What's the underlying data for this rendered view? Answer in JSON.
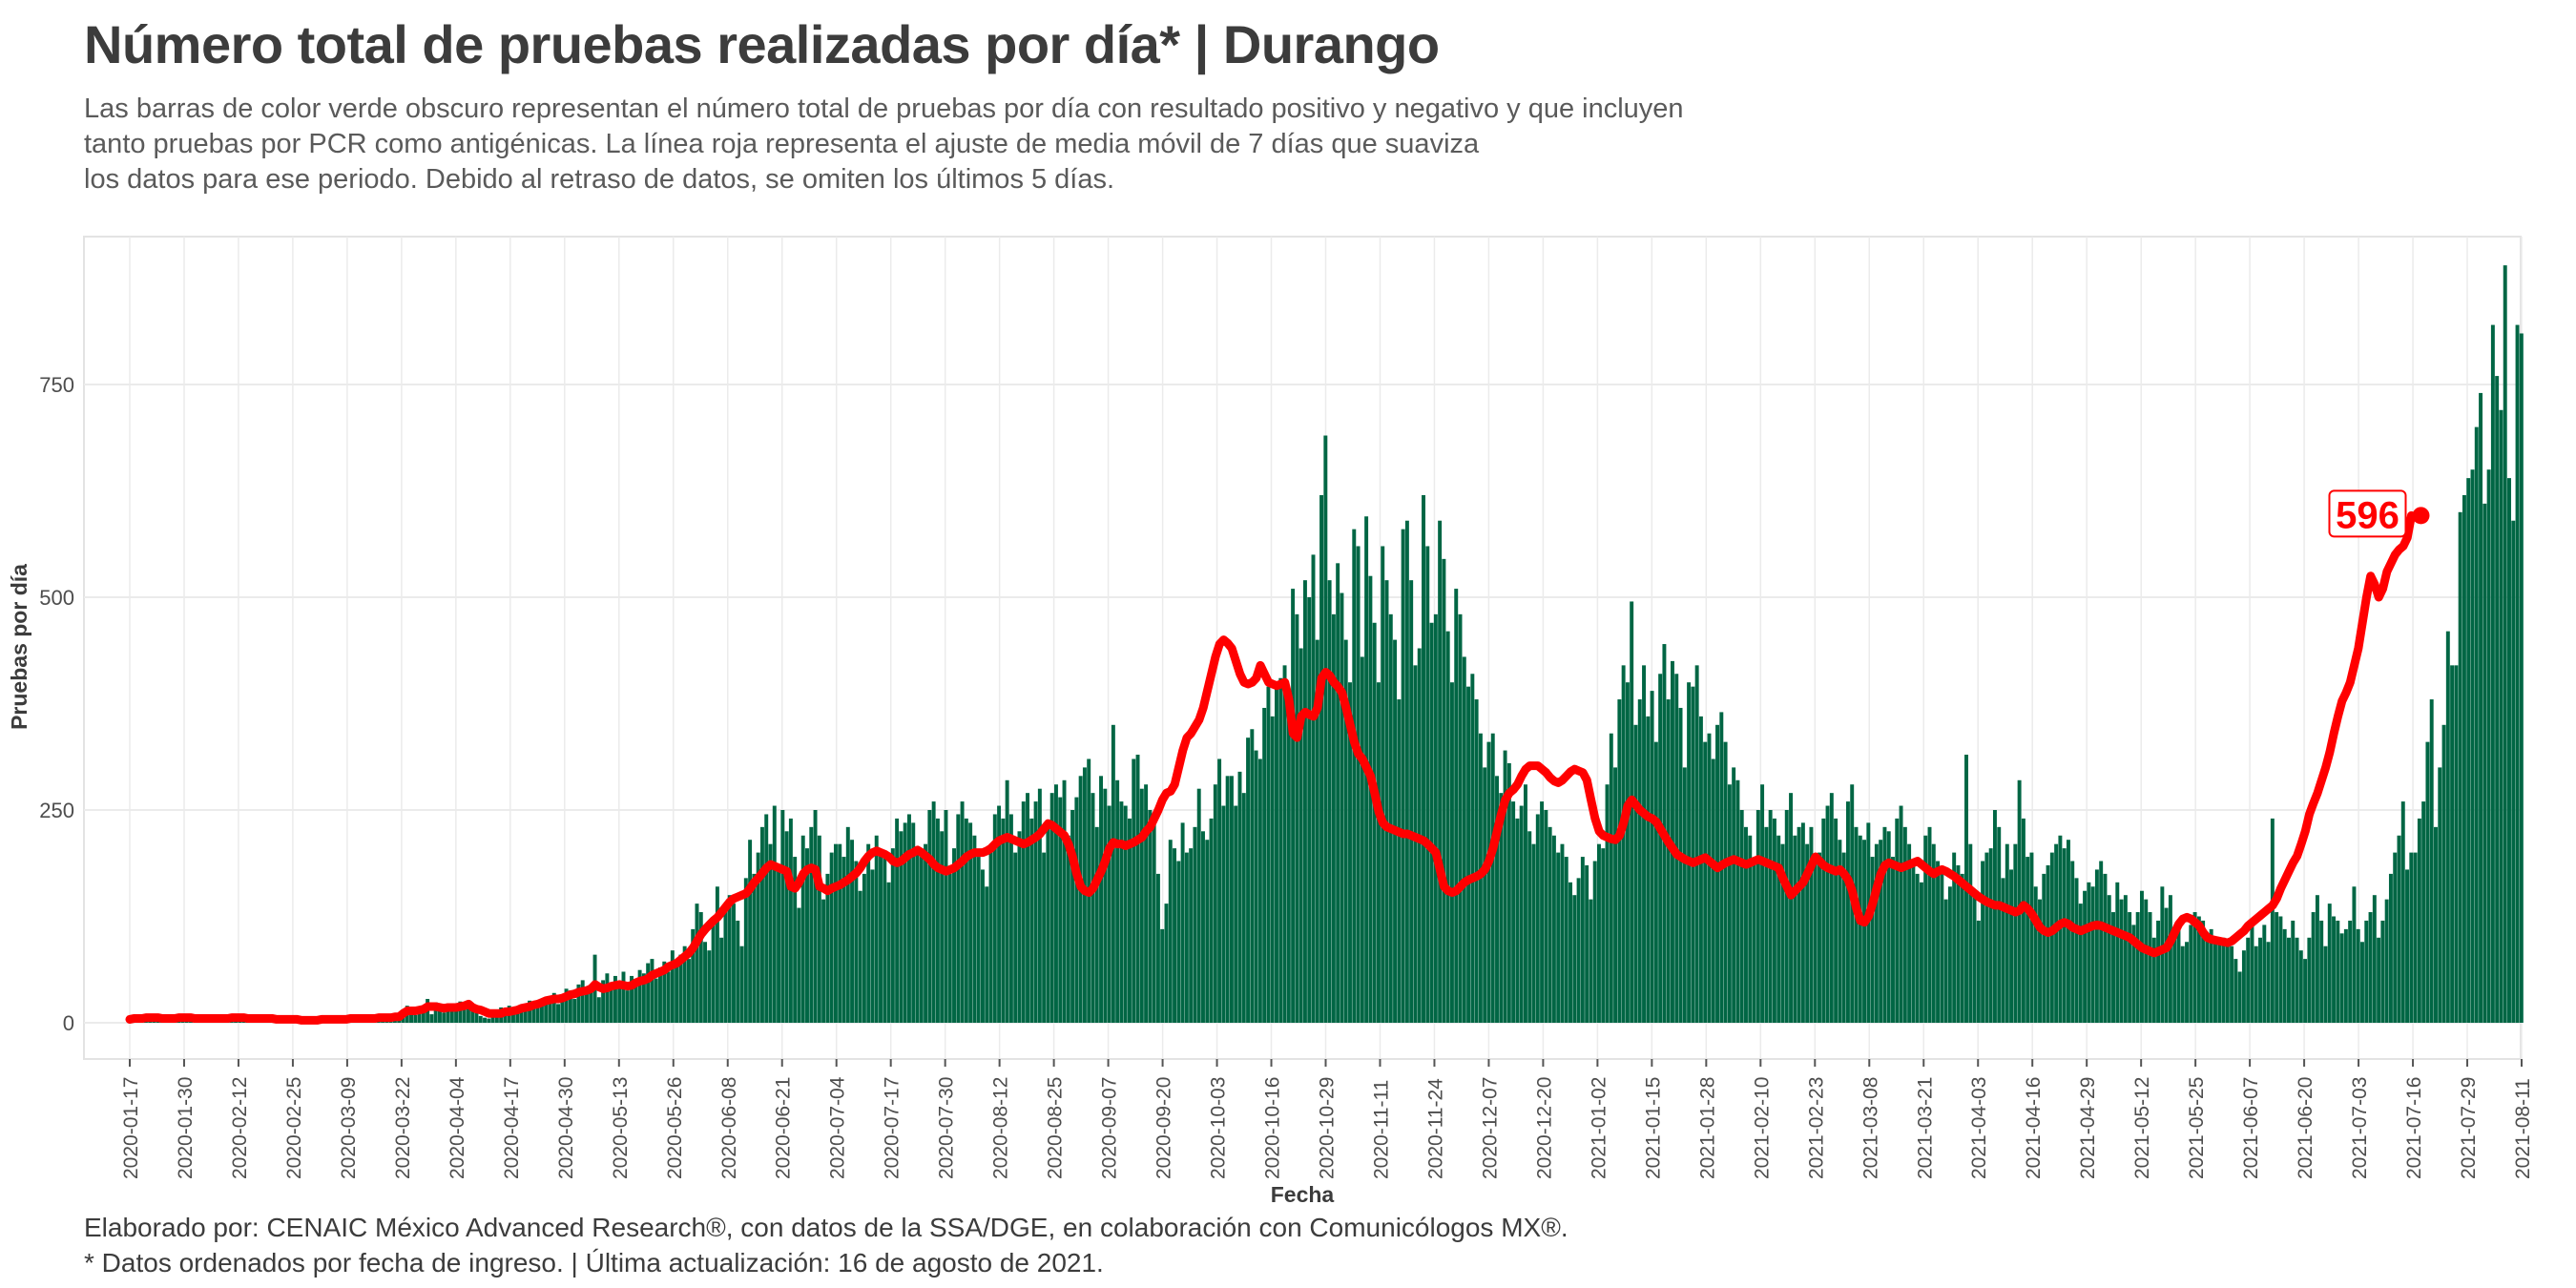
{
  "header": {
    "title": "Número total de pruebas realizadas por día* | Durango",
    "subtitle_lines": [
      "Las barras de color verde obscuro representan el número total de pruebas por día con resultado positivo y negativo y que incluyen",
      "tanto pruebas por PCR como antigénicas. La línea roja representa el ajuste de media móvil de 7 días que suaviza",
      "los datos para ese periodo. Debido al retraso de datos, se omiten los últimos 5 días."
    ]
  },
  "caption": {
    "line1": "Elaborado por: CENAIC México Advanced Research®, con datos de la SSA/DGE, en colaboración con Comunicólogos MX®.",
    "line2": "* Datos ordenados por fecha de ingreso. | Última actualización: 16 de agosto de 2021."
  },
  "colors": {
    "bars": "#006644",
    "line": "#ff0000",
    "grid": "#ebebeb",
    "panel_border": "#e0e0e0"
  },
  "chart_data": {
    "type": "bar",
    "xlabel": "Fecha",
    "ylabel": "Pruebas por día",
    "ylim": [
      -40,
      925
    ],
    "yticks": [
      0,
      250,
      500,
      750
    ],
    "x_start": "2020-01-17",
    "x_end": "2021-08-11",
    "xticks": [
      "2020-01-17",
      "2020-01-30",
      "2020-02-12",
      "2020-02-25",
      "2020-03-09",
      "2020-03-22",
      "2020-04-04",
      "2020-04-17",
      "2020-04-30",
      "2020-05-13",
      "2020-05-26",
      "2020-06-08",
      "2020-06-21",
      "2020-07-04",
      "2020-07-17",
      "2020-07-30",
      "2020-08-12",
      "2020-08-25",
      "2020-09-07",
      "2020-09-20",
      "2020-10-03",
      "2020-10-16",
      "2020-10-29",
      "2020-11-11",
      "2020-11-24",
      "2020-12-07",
      "2020-12-20",
      "2021-01-02",
      "2021-01-15",
      "2021-01-28",
      "2021-02-10",
      "2021-02-23",
      "2021-03-08",
      "2021-03-21",
      "2021-04-03",
      "2021-04-16",
      "2021-04-29",
      "2021-05-12",
      "2021-05-25",
      "2021-06-07",
      "2021-06-20",
      "2021-07-03",
      "2021-07-16",
      "2021-07-29",
      "2021-08-11"
    ],
    "series": [
      {
        "kind": "bar",
        "values": [
          2,
          8,
          6,
          5,
          4,
          10,
          3,
          6,
          5,
          4,
          7,
          5,
          3,
          4,
          6,
          8,
          5,
          4,
          6,
          7,
          5,
          4,
          5,
          6,
          3,
          4,
          5,
          8,
          6,
          5,
          4,
          7,
          5,
          6,
          4,
          5,
          6,
          4,
          3,
          5,
          4,
          3,
          2,
          3,
          5,
          4,
          3,
          6,
          4,
          2,
          3,
          5,
          4,
          6,
          5,
          3,
          4,
          5,
          6,
          3,
          4,
          6,
          7,
          8,
          4,
          5,
          6,
          14,
          20,
          12,
          9,
          18,
          15,
          28,
          10,
          24,
          16,
          12,
          14,
          20,
          15,
          25,
          22,
          18,
          16,
          12,
          8,
          6,
          5,
          10,
          12,
          18,
          14,
          20,
          16,
          12,
          15,
          22,
          26,
          18,
          20,
          28,
          30,
          25,
          35,
          22,
          30,
          40,
          38,
          28,
          45,
          50,
          42,
          36,
          80,
          30,
          50,
          58,
          45,
          55,
          42,
          60,
          38,
          55,
          48,
          62,
          58,
          70,
          75,
          52,
          65,
          72,
          60,
          85,
          68,
          80,
          90,
          75,
          110,
          140,
          130,
          95,
          85,
          120,
          160,
          100,
          135,
          150,
          140,
          120,
          90,
          170,
          215,
          175,
          200,
          230,
          245,
          210,
          255,
          180,
          250,
          225,
          240,
          195,
          135,
          220,
          205,
          230,
          250,
          220,
          145,
          175,
          200,
          210,
          210,
          195,
          230,
          215,
          190,
          155,
          175,
          210,
          180,
          220,
          200,
          195,
          165,
          205,
          240,
          225,
          235,
          245,
          235,
          200,
          195,
          210,
          250,
          260,
          240,
          225,
          250,
          175,
          205,
          245,
          260,
          240,
          235,
          220,
          195,
          180,
          160,
          210,
          245,
          255,
          240,
          285,
          245,
          200,
          225,
          260,
          270,
          240,
          260,
          275,
          200,
          230,
          270,
          280,
          265,
          285,
          220,
          250,
          265,
          290,
          300,
          310,
          270,
          230,
          290,
          275,
          255,
          350,
          285,
          260,
          255,
          240,
          310,
          315,
          275,
          280,
          250,
          240,
          175,
          110,
          140,
          215,
          205,
          190,
          235,
          200,
          205,
          230,
          275,
          225,
          215,
          240,
          280,
          310,
          255,
          290,
          290,
          255,
          295,
          270,
          335,
          345,
          320,
          310,
          370,
          395,
          360,
          400,
          405,
          420,
          380,
          510,
          480,
          440,
          520,
          500,
          550,
          450,
          620,
          690,
          520,
          480,
          540,
          505,
          450,
          400,
          580,
          560,
          430,
          595,
          525,
          470,
          400,
          560,
          520,
          480,
          450,
          380,
          580,
          590,
          520,
          420,
          440,
          620,
          560,
          470,
          480,
          590,
          545,
          460,
          400,
          510,
          480,
          430,
          395,
          410,
          380,
          340,
          300,
          330,
          340,
          290,
          270,
          320,
          305,
          260,
          240,
          255,
          280,
          225,
          210,
          245,
          260,
          250,
          230,
          220,
          200,
          210,
          195,
          165,
          150,
          170,
          195,
          185,
          145,
          190,
          210,
          205,
          280,
          340,
          300,
          380,
          420,
          400,
          495,
          350,
          380,
          420,
          360,
          390,
          330,
          410,
          445,
          380,
          425,
          410,
          370,
          300,
          400,
          395,
          420,
          360,
          330,
          340,
          310,
          350,
          365,
          330,
          280,
          300,
          285,
          250,
          230,
          220,
          190,
          250,
          280,
          230,
          250,
          240,
          220,
          210,
          250,
          270,
          220,
          230,
          235,
          210,
          230,
          190,
          200,
          240,
          255,
          270,
          240,
          215,
          200,
          260,
          280,
          230,
          220,
          215,
          235,
          195,
          210,
          215,
          230,
          225,
          195,
          240,
          255,
          230,
          210,
          190,
          175,
          165,
          220,
          230,
          210,
          190,
          180,
          145,
          160,
          200,
          185,
          175,
          315,
          210,
          150,
          120,
          190,
          200,
          205,
          250,
          230,
          170,
          210,
          180,
          210,
          285,
          240,
          195,
          200,
          160,
          145,
          175,
          185,
          200,
          210,
          220,
          205,
          215,
          190,
          170,
          140,
          155,
          165,
          160,
          180,
          190,
          175,
          150,
          130,
          165,
          145,
          150,
          130,
          115,
          130,
          155,
          145,
          130,
          100,
          120,
          160,
          135,
          150,
          110,
          110,
          90,
          95,
          115,
          130,
          125,
          120,
          100,
          110,
          95,
          100,
          100,
          95,
          90,
          75,
          60,
          85,
          100,
          120,
          90,
          100,
          115,
          95,
          240,
          130,
          125,
          110,
          100,
          120,
          100,
          85,
          75,
          100,
          130,
          150,
          120,
          90,
          140,
          125,
          120,
          105,
          110,
          120,
          160,
          110,
          95,
          120,
          130,
          150,
          100,
          120,
          145,
          175,
          200,
          220,
          260,
          180,
          200,
          200,
          240,
          260,
          330,
          380,
          230,
          300,
          350,
          460,
          420,
          420,
          600,
          620,
          640,
          650,
          700,
          740,
          610,
          650,
          820,
          760,
          720,
          890,
          640,
          590,
          820,
          810
        ]
      },
      {
        "kind": "line",
        "label": "596",
        "values": [
          4,
          5,
          5,
          5,
          6,
          6,
          6,
          6,
          5,
          5,
          5,
          5,
          6,
          6,
          6,
          6,
          5,
          5,
          5,
          5,
          5,
          5,
          5,
          5,
          5,
          6,
          6,
          6,
          6,
          5,
          5,
          5,
          5,
          5,
          5,
          5,
          4,
          4,
          4,
          4,
          4,
          4,
          3,
          3,
          3,
          3,
          3,
          4,
          4,
          4,
          4,
          4,
          4,
          4,
          5,
          5,
          5,
          5,
          5,
          5,
          5,
          6,
          6,
          6,
          6,
          7,
          7,
          11,
          14,
          14,
          14,
          15,
          16,
          19,
          19,
          19,
          18,
          17,
          18,
          18,
          18,
          19,
          20,
          22,
          18,
          16,
          15,
          13,
          11,
          11,
          11,
          11,
          13,
          13,
          14,
          15,
          17,
          18,
          19,
          21,
          22,
          24,
          26,
          27,
          28,
          28,
          29,
          31,
          33,
          34,
          36,
          37,
          38,
          40,
          45,
          42,
          40,
          41,
          43,
          44,
          45,
          44,
          43,
          44,
          47,
          49,
          50,
          52,
          56,
          58,
          60,
          62,
          66,
          68,
          70,
          74,
          78,
          82,
          88,
          96,
          104,
          110,
          115,
          120,
          124,
          130,
          136,
          142,
          146,
          148,
          150,
          152,
          158,
          165,
          170,
          176,
          182,
          186,
          184,
          182,
          180,
          178,
          160,
          158,
          165,
          175,
          180,
          182,
          180,
          160,
          158,
          155,
          158,
          160,
          162,
          165,
          168,
          172,
          176,
          182,
          190,
          196,
          200,
          202,
          200,
          198,
          195,
          190,
          188,
          190,
          194,
          198,
          200,
          203,
          200,
          196,
          192,
          186,
          182,
          180,
          178,
          180,
          182,
          186,
          190,
          195,
          198,
          200,
          200,
          200,
          202,
          205,
          210,
          214,
          216,
          218,
          216,
          214,
          212,
          210,
          212,
          215,
          218,
          222,
          228,
          234,
          232,
          228,
          224,
          220,
          210,
          195,
          175,
          160,
          155,
          153,
          158,
          168,
          178,
          190,
          205,
          212,
          210,
          210,
          208,
          210,
          212,
          215,
          218,
          225,
          230,
          240,
          250,
          262,
          270,
          272,
          280,
          300,
          320,
          335,
          340,
          348,
          356,
          370,
          390,
          410,
          430,
          445,
          450,
          446,
          440,
          425,
          410,
          400,
          398,
          400,
          405,
          420,
          410,
          400,
          398,
          396,
          398,
          400,
          380,
          340,
          335,
          360,
          365,
          362,
          360,
          370,
          405,
          412,
          408,
          400,
          395,
          388,
          370,
          350,
          330,
          316,
          310,
          300,
          290,
          270,
          248,
          235,
          230,
          228,
          226,
          224,
          222,
          222,
          220,
          218,
          216,
          214,
          210,
          205,
          200,
          180,
          160,
          155,
          153,
          155,
          160,
          165,
          168,
          170,
          172,
          175,
          180,
          190,
          205,
          225,
          245,
          262,
          270,
          274,
          280,
          290,
          298,
          302,
          302,
          302,
          298,
          294,
          288,
          284,
          282,
          285,
          290,
          295,
          298,
          296,
          294,
          285,
          262,
          240,
          225,
          220,
          218,
          216,
          215,
          220,
          235,
          255,
          262,
          256,
          250,
          246,
          242,
          240,
          236,
          228,
          220,
          212,
          205,
          198,
          195,
          192,
          190,
          188,
          190,
          192,
          194,
          190,
          186,
          182,
          185,
          188,
          190,
          192,
          190,
          188,
          186,
          188,
          190,
          192,
          190,
          188,
          186,
          184,
          182,
          170,
          160,
          150,
          155,
          160,
          165,
          175,
          185,
          195,
          190,
          185,
          182,
          180,
          178,
          180,
          175,
          168,
          155,
          135,
          120,
          118,
          125,
          140,
          158,
          175,
          185,
          188,
          186,
          184,
          182,
          184,
          186,
          188,
          190,
          186,
          182,
          178,
          175,
          178,
          180,
          178,
          175,
          172,
          168,
          164,
          160,
          156,
          152,
          148,
          145,
          142,
          140,
          138,
          138,
          136,
          134,
          132,
          130,
          132,
          138,
          134,
          128,
          120,
          112,
          108,
          106,
          108,
          112,
          116,
          118,
          116,
          112,
          110,
          108,
          110,
          112,
          114,
          115,
          114,
          112,
          110,
          108,
          106,
          104,
          102,
          100,
          96,
          92,
          88,
          86,
          84,
          82,
          84,
          86,
          88,
          96,
          106,
          116,
          122,
          124,
          122,
          118,
          114,
          106,
          100,
          98,
          97,
          96,
          95,
          94,
          96,
          100,
          104,
          108,
          114,
          118,
          122,
          126,
          130,
          134,
          138,
          146,
          158,
          168,
          178,
          188,
          196,
          210,
          225,
          245,
          258,
          270,
          285,
          300,
          318,
          340,
          360,
          378,
          388,
          400,
          420,
          440,
          470,
          500,
          525,
          515,
          500,
          510,
          530,
          540,
          550,
          556,
          560,
          570,
          596
        ]
      }
    ]
  }
}
